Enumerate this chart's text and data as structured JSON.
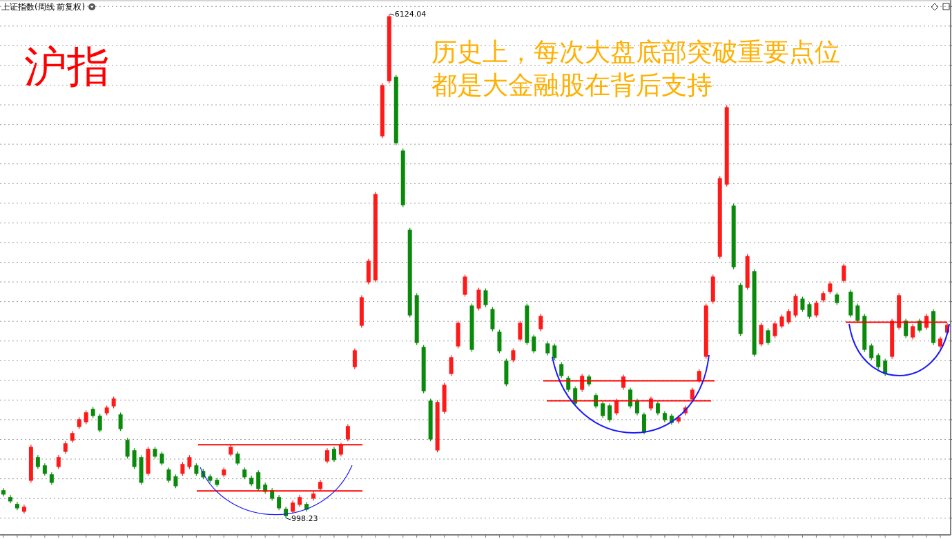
{
  "chart_data": {
    "type": "candlestick",
    "title": "上证指数(周线 前复权)",
    "subtitle": "沪指",
    "annotations": [
      "历史上，每次大盘底部突破重要点位",
      "都是大金融股在背后支持",
      "6124.04",
      "998.23"
    ],
    "ref_lines": [
      {
        "axis": "y",
        "value": 1745,
        "color": "#ff0000"
      },
      {
        "axis": "y",
        "value": 1276,
        "color": "#ff0000"
      },
      {
        "axis": "y",
        "value": 2396,
        "color": "#ff0000"
      },
      {
        "axis": "y",
        "value": 2193,
        "color": "#ff0000"
      },
      {
        "axis": "y",
        "value": 2991,
        "color": "#ff0000"
      }
    ],
    "categories": [
      null,
      null,
      null,
      null,
      null,
      null,
      null,
      null,
      null,
      null,
      null,
      null,
      null,
      null,
      null,
      null,
      null,
      null,
      null,
      null,
      null,
      null,
      null,
      null,
      null,
      null,
      null,
      null,
      null,
      null,
      null,
      null,
      null,
      null,
      null,
      null,
      null,
      null,
      null,
      null,
      null,
      null,
      null,
      null,
      null,
      null,
      null,
      null,
      null,
      null,
      null,
      null,
      null,
      null,
      null,
      null,
      null,
      null,
      null,
      null,
      null,
      null,
      null,
      null,
      null,
      null,
      null,
      null,
      null,
      null,
      null,
      null,
      null,
      null,
      null,
      null,
      null,
      null,
      null,
      null,
      null,
      null,
      null,
      null,
      null,
      null,
      null,
      null,
      null,
      null,
      null,
      null,
      null,
      null,
      null,
      null,
      null,
      null,
      null,
      null,
      null,
      null,
      null,
      null,
      null,
      null,
      null,
      null,
      null,
      null,
      null,
      null,
      null,
      null,
      null,
      null,
      null,
      null,
      null,
      null,
      null,
      null,
      null,
      null,
      null,
      null,
      null,
      null,
      null,
      null,
      null,
      null,
      null,
      null,
      null,
      null,
      null,
      null
    ],
    "ohlc": [
      [
        1284,
        1304,
        1220,
        1240
      ],
      [
        1214,
        1234,
        1150,
        1170
      ],
      [
        1144,
        1164,
        1080,
        1100
      ],
      [
        1065,
        1136,
        1045,
        1116
      ],
      [
        1380,
        1745,
        1360,
        1725
      ],
      [
        1620,
        1640,
        1500,
        1520
      ],
      [
        1536,
        1556,
        1430,
        1450
      ],
      [
        1445,
        1465,
        1339,
        1359
      ],
      [
        1520,
        1640,
        1500,
        1620
      ],
      [
        1674,
        1780,
        1654,
        1760
      ],
      [
        1786,
        1885,
        1766,
        1865
      ],
      [
        1926,
        2025,
        1906,
        2005
      ],
      [
        1975,
        2095,
        1955,
        2075
      ],
      [
        2110,
        2130,
        2018,
        2038
      ],
      [
        2040,
        2060,
        1871,
        1891
      ],
      [
        2066,
        2144,
        2046,
        2124
      ],
      [
        2136,
        2235,
        2116,
        2215
      ],
      [
        2054,
        2074,
        1885,
        1905
      ],
      [
        1795,
        1815,
        1605,
        1625
      ],
      [
        1690,
        1710,
        1500,
        1520
      ],
      [
        1620,
        1640,
        1339,
        1359
      ],
      [
        1450,
        1724,
        1430,
        1704
      ],
      [
        1704,
        1724,
        1605,
        1625
      ],
      [
        1655,
        1675,
        1535,
        1555
      ],
      [
        1494,
        1514,
        1360,
        1380
      ],
      [
        1424,
        1444,
        1304,
        1324
      ],
      [
        1450,
        1570,
        1430,
        1550
      ],
      [
        1520,
        1640,
        1500,
        1620
      ],
      [
        1536,
        1556,
        1430,
        1450
      ],
      [
        1480,
        1500,
        1395,
        1415
      ],
      [
        1424,
        1444,
        1360,
        1380
      ],
      [
        1389,
        1409,
        1318,
        1338
      ],
      [
        1436,
        1514,
        1416,
        1494
      ],
      [
        1646,
        1745,
        1626,
        1725
      ],
      [
        1655,
        1675,
        1535,
        1555
      ],
      [
        1494,
        1514,
        1395,
        1415
      ],
      [
        1410,
        1430,
        1325,
        1345
      ],
      [
        1466,
        1486,
        1276,
        1296
      ],
      [
        1340,
        1360,
        1248,
        1268
      ],
      [
        1284,
        1304,
        1178,
        1198
      ],
      [
        1214,
        1234,
        1080,
        1100
      ],
      [
        1095,
        1115,
        998.23,
        1020
      ],
      [
        1065,
        1178,
        1045,
        1158
      ],
      [
        1135,
        1234,
        1115,
        1214
      ],
      [
        1144,
        1164,
        1066,
        1086
      ],
      [
        1198,
        1269,
        1178,
        1249
      ],
      [
        1296,
        1388,
        1276,
        1368
      ],
      [
        1576,
        1710,
        1556,
        1690
      ],
      [
        1704,
        1724,
        1570,
        1590
      ],
      [
        1646,
        1766,
        1626,
        1746
      ],
      [
        1800,
        1955,
        1780,
        1935
      ],
      [
        2535,
        2725,
        2515,
        2705
      ],
      [
        2955,
        3264,
        2935,
        3244
      ],
      [
        3396,
        3635,
        3376,
        3615
      ],
      [
        3417,
        4314,
        3397,
        4294
      ],
      [
        4880,
        5420,
        4860,
        5400
      ],
      [
        5440,
        6124.04,
        5420,
        6100
      ],
      [
        5484,
        5504,
        4790,
        4810
      ],
      [
        4735,
        4755,
        4160,
        4180
      ],
      [
        3930,
        3950,
        3040,
        3060
      ],
      [
        3265,
        3285,
        2760,
        2780
      ],
      [
        2740,
        2760,
        2270,
        2290
      ],
      [
        2194,
        2214,
        1780,
        1800
      ],
      [
        1688,
        2200,
        1668,
        2180
      ],
      [
        2080,
        2375,
        2060,
        2355
      ],
      [
        2465,
        2655,
        2445,
        2635
      ],
      [
        2745,
        3005,
        2725,
        2985
      ],
      [
        3270,
        3474,
        3250,
        3454
      ],
      [
        3160,
        3180,
        2690,
        2710
      ],
      [
        3130,
        3341,
        3110,
        3321
      ],
      [
        3314,
        3334,
        3145,
        3165
      ],
      [
        3125,
        3145,
        2900,
        2920
      ],
      [
        2894,
        2914,
        2676,
        2696
      ],
      [
        2600,
        2620,
        2340,
        2360
      ],
      [
        2605,
        2725,
        2585,
        2705
      ],
      [
        2815,
        3005,
        2795,
        2985
      ],
      [
        3160,
        3180,
        2760,
        2780
      ],
      [
        2845,
        2865,
        2676,
        2696
      ],
      [
        2920,
        3075,
        2900,
        3055
      ],
      [
        2775,
        2795,
        2655,
        2675
      ],
      [
        2754,
        2774,
        2606,
        2626
      ],
      [
        2565,
        2585,
        2424,
        2444
      ],
      [
        2425,
        2445,
        2284,
        2304
      ],
      [
        2320,
        2340,
        2144,
        2164
      ],
      [
        2304,
        2466,
        2284,
        2446
      ],
      [
        2439,
        2459,
        2340,
        2360
      ],
      [
        2250,
        2270,
        2116,
        2136
      ],
      [
        2166,
        2186,
        2018,
        2038
      ],
      [
        2145,
        2165,
        1976,
        1996
      ],
      [
        2066,
        2214,
        2046,
        2194
      ],
      [
        2325,
        2459,
        2305,
        2439
      ],
      [
        2306,
        2326,
        2116,
        2136
      ],
      [
        2194,
        2214,
        2046,
        2066
      ],
      [
        2054,
        2074,
        1850,
        1870
      ],
      [
        2115,
        2235,
        2095,
        2215
      ],
      [
        2166,
        2186,
        2046,
        2066
      ],
      [
        2068,
        2088,
        1976,
        1996
      ],
      [
        2040,
        2060,
        1948,
        1968
      ],
      [
        1982,
        2046,
        1962,
        2026
      ],
      [
        2066,
        2144,
        2046,
        2124
      ],
      [
        2206,
        2326,
        2186,
        2306
      ],
      [
        2395,
        2515,
        2375,
        2495
      ],
      [
        2640,
        3180,
        2620,
        3160
      ],
      [
        3200,
        3474,
        3180,
        3454
      ],
      [
        3655,
        4475,
        3635,
        4455
      ],
      [
        4390,
        5196,
        4370,
        5176
      ],
      [
        4175,
        4195,
        3530,
        3550
      ],
      [
        3370,
        3390,
        2851,
        2871
      ],
      [
        3340,
        3684,
        3320,
        3664
      ],
      [
        3510,
        3530,
        2641,
        2661
      ],
      [
        2766,
        2984,
        2746,
        2964
      ],
      [
        2908,
        2928,
        2760,
        2780
      ],
      [
        2850,
        2998,
        2830,
        2978
      ],
      [
        2948,
        3068,
        2928,
        3048
      ],
      [
        2990,
        3124,
        2970,
        3104
      ],
      [
        3060,
        3278,
        3040,
        3258
      ],
      [
        3230,
        3250,
        3096,
        3116
      ],
      [
        3174,
        3194,
        3026,
        3046
      ],
      [
        3060,
        3208,
        3040,
        3188
      ],
      [
        3214,
        3306,
        3194,
        3286
      ],
      [
        3298,
        3404,
        3278,
        3384
      ],
      [
        3272,
        3292,
        3166,
        3186
      ],
      [
        3410,
        3586,
        3390,
        3566
      ],
      [
        3300,
        3320,
        3040,
        3060
      ],
      [
        3160,
        3180,
        2984,
        3004
      ],
      [
        3055,
        3075,
        2690,
        2710
      ],
      [
        2754,
        2774,
        2606,
        2626
      ],
      [
        2656,
        2676,
        2515,
        2535
      ],
      [
        2600,
        2620,
        2445,
        2465
      ],
      [
        2640,
        3026,
        2620,
        3006
      ],
      [
        2934,
        3285,
        2914,
        3265
      ],
      [
        3006,
        3026,
        2830,
        2850
      ],
      [
        2836,
        2970,
        2816,
        2950
      ],
      [
        3006,
        3026,
        2886,
        2906
      ],
      [
        2934,
        3075,
        2914,
        3055
      ],
      [
        3104,
        3124,
        2760,
        2780
      ],
      [
        2745,
        2844,
        2725,
        2824
      ],
      [
        2885,
        2984,
        2865,
        2964
      ]
    ],
    "ylim": [
      830,
      6230
    ],
    "yticks": [
      {
        "value": 1000,
        "label": null
      },
      {
        "value": 1200,
        "label": null
      },
      {
        "value": 1400,
        "label": null
      },
      {
        "value": 1600,
        "label": null
      },
      {
        "value": 1800,
        "label": null
      },
      {
        "value": 2000,
        "label": null
      },
      {
        "value": 2200,
        "label": null
      },
      {
        "value": 2400,
        "label": null
      },
      {
        "value": 2600,
        "label": null
      },
      {
        "value": 2800,
        "label": null
      },
      {
        "value": 3000,
        "label": null
      },
      {
        "value": 3200,
        "label": null
      },
      {
        "value": 3400,
        "label": null
      },
      {
        "value": 3600,
        "label": null
      },
      {
        "value": 3800,
        "label": null
      },
      {
        "value": 4000,
        "label": null
      },
      {
        "value": 4200,
        "label": null
      },
      {
        "value": 4400,
        "label": null
      },
      {
        "value": 4600,
        "label": null
      },
      {
        "value": 4800,
        "label": null
      },
      {
        "value": 5000,
        "label": null
      },
      {
        "value": 5200,
        "label": null
      },
      {
        "value": 5400,
        "label": null
      },
      {
        "value": 5600,
        "label": null
      },
      {
        "value": 5800,
        "label": null
      },
      {
        "value": 6000,
        "label": null
      },
      {
        "value": 6200,
        "label": null
      }
    ],
    "grid": "y"
  }
}
